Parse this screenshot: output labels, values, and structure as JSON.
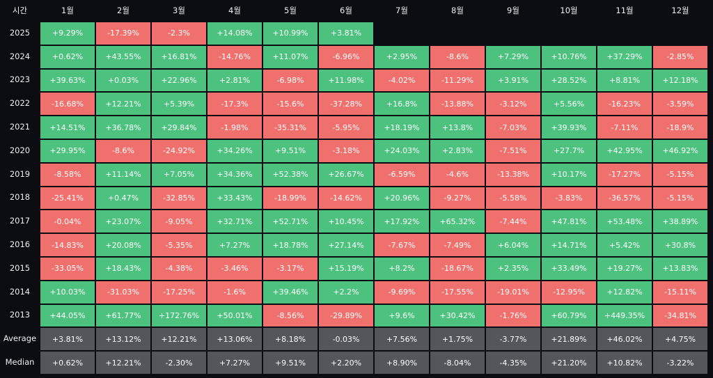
{
  "chart_data": {
    "type": "heatmap",
    "corner_label": "시간",
    "columns": [
      "1월",
      "2월",
      "3월",
      "4월",
      "5월",
      "6월",
      "7월",
      "8월",
      "9월",
      "10월",
      "11월",
      "12월"
    ],
    "rows": [
      {
        "label": "2025",
        "values": [
          "+9.29%",
          "-17.39%",
          "-2.3%",
          "+14.08%",
          "+10.99%",
          "+3.81%",
          "",
          "",
          "",
          "",
          "",
          ""
        ]
      },
      {
        "label": "2024",
        "values": [
          "+0.62%",
          "+43.55%",
          "+16.81%",
          "-14.76%",
          "+11.07%",
          "-6.96%",
          "+2.95%",
          "-8.6%",
          "+7.29%",
          "+10.76%",
          "+37.29%",
          "-2.85%"
        ]
      },
      {
        "label": "2023",
        "values": [
          "+39.63%",
          "+0.03%",
          "+22.96%",
          "+2.81%",
          "-6.98%",
          "+11.98%",
          "-4.02%",
          "-11.29%",
          "+3.91%",
          "+28.52%",
          "+8.81%",
          "+12.18%"
        ]
      },
      {
        "label": "2022",
        "values": [
          "-16.68%",
          "+12.21%",
          "+5.39%",
          "-17.3%",
          "-15.6%",
          "-37.28%",
          "+16.8%",
          "-13.88%",
          "-3.12%",
          "+5.56%",
          "-16.23%",
          "-3.59%"
        ]
      },
      {
        "label": "2021",
        "values": [
          "+14.51%",
          "+36.78%",
          "+29.84%",
          "-1.98%",
          "-35.31%",
          "-5.95%",
          "+18.19%",
          "+13.8%",
          "-7.03%",
          "+39.93%",
          "-7.11%",
          "-18.9%"
        ]
      },
      {
        "label": "2020",
        "values": [
          "+29.95%",
          "-8.6%",
          "-24.92%",
          "+34.26%",
          "+9.51%",
          "-3.18%",
          "+24.03%",
          "+2.83%",
          "-7.51%",
          "+27.7%",
          "+42.95%",
          "+46.92%"
        ]
      },
      {
        "label": "2019",
        "values": [
          "-8.58%",
          "+11.14%",
          "+7.05%",
          "+34.36%",
          "+52.38%",
          "+26.67%",
          "-6.59%",
          "-4.6%",
          "-13.38%",
          "+10.17%",
          "-17.27%",
          "-5.15%"
        ]
      },
      {
        "label": "2018",
        "values": [
          "-25.41%",
          "+0.47%",
          "-32.85%",
          "+33.43%",
          "-18.99%",
          "-14.62%",
          "+20.96%",
          "-9.27%",
          "-5.58%",
          "-3.83%",
          "-36.57%",
          "-5.15%"
        ]
      },
      {
        "label": "2017",
        "values": [
          "-0.04%",
          "+23.07%",
          "-9.05%",
          "+32.71%",
          "+52.71%",
          "+10.45%",
          "+17.92%",
          "+65.32%",
          "-7.44%",
          "+47.81%",
          "+53.48%",
          "+38.89%"
        ]
      },
      {
        "label": "2016",
        "values": [
          "-14.83%",
          "+20.08%",
          "-5.35%",
          "+7.27%",
          "+18.78%",
          "+27.14%",
          "-7.67%",
          "-7.49%",
          "+6.04%",
          "+14.71%",
          "+5.42%",
          "+30.8%"
        ]
      },
      {
        "label": "2015",
        "values": [
          "-33.05%",
          "+18.43%",
          "-4.38%",
          "-3.46%",
          "-3.17%",
          "+15.19%",
          "+8.2%",
          "-18.67%",
          "+2.35%",
          "+33.49%",
          "+19.27%",
          "+13.83%"
        ]
      },
      {
        "label": "2014",
        "values": [
          "+10.03%",
          "-31.03%",
          "-17.25%",
          "-1.6%",
          "+39.46%",
          "+2.2%",
          "-9.69%",
          "-17.55%",
          "-19.01%",
          "-12.95%",
          "+12.82%",
          "-15.11%"
        ]
      },
      {
        "label": "2013",
        "values": [
          "+44.05%",
          "+61.77%",
          "+172.76%",
          "+50.01%",
          "-8.56%",
          "-29.89%",
          "+9.6%",
          "+30.42%",
          "-1.76%",
          "+60.79%",
          "+449.35%",
          "-34.81%"
        ]
      },
      {
        "label": "Average",
        "summary": true,
        "values": [
          "+3.81%",
          "+13.12%",
          "+12.21%",
          "+13.06%",
          "+8.18%",
          "-0.03%",
          "+7.56%",
          "+1.75%",
          "-3.77%",
          "+21.89%",
          "+46.02%",
          "+4.75%"
        ]
      },
      {
        "label": "Median",
        "summary": true,
        "values": [
          "+0.62%",
          "+12.21%",
          "-2.30%",
          "+7.27%",
          "+9.51%",
          "+2.20%",
          "+8.90%",
          "-8.04%",
          "-4.35%",
          "+21.20%",
          "+10.82%",
          "-3.22%"
        ]
      }
    ]
  },
  "colors": {
    "positive": "#4cc27e",
    "negative": "#f0706e",
    "summary": "#55565c",
    "background": "#0b0b12"
  }
}
